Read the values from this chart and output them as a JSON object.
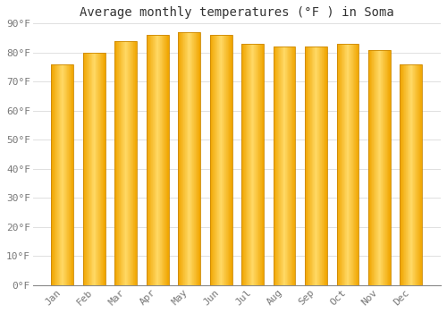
{
  "title": "Average monthly temperatures (°F ) in Soma",
  "months": [
    "Jan",
    "Feb",
    "Mar",
    "Apr",
    "May",
    "Jun",
    "Jul",
    "Aug",
    "Sep",
    "Oct",
    "Nov",
    "Dec"
  ],
  "values": [
    76,
    80,
    84,
    86,
    87,
    86,
    83,
    82,
    82,
    83,
    81,
    76
  ],
  "bar_color_center": "#FFD966",
  "bar_color_edge": "#F0A500",
  "background_color": "#FFFFFF",
  "plot_bg_color": "#FFFFFF",
  "ylim": [
    0,
    90
  ],
  "yticks": [
    0,
    10,
    20,
    30,
    40,
    50,
    60,
    70,
    80,
    90
  ],
  "ytick_labels": [
    "0°F",
    "10°F",
    "20°F",
    "30°F",
    "40°F",
    "50°F",
    "60°F",
    "70°F",
    "80°F",
    "90°F"
  ],
  "title_fontsize": 10,
  "tick_fontsize": 8,
  "title_color": "#333333",
  "tick_color": "#777777",
  "grid_color": "#E0E0E0",
  "bar_width": 0.7,
  "n_gradient_steps": 40
}
